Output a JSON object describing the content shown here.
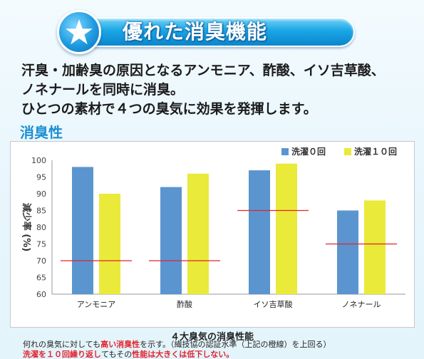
{
  "banner": {
    "title": "優れた消臭機能",
    "icon": "star-icon"
  },
  "intro": [
    "汗臭・加齢臭の原因となるアンモニア、酢酸、イソ吉草酸、",
    "ノネナールを同時に消臭。",
    "ひとつの素材で４つの臭気に効果を発揮します。"
  ],
  "section_title": "消臭性",
  "chart_data": {
    "type": "bar",
    "title": "４大臭気の消臭性能",
    "ylabel": "減少率 (%)",
    "ylim": [
      60,
      100
    ],
    "yticks": [
      60,
      65,
      70,
      75,
      80,
      85,
      90,
      95,
      100
    ],
    "categories": [
      "アンモニア",
      "酢酸",
      "イソ吉草酸",
      "ノネナール"
    ],
    "series": [
      {
        "name": "洗濯０回",
        "values": [
          98,
          92,
          97,
          85
        ],
        "color": "#5b95cf"
      },
      {
        "name": "洗濯１０回",
        "values": [
          90,
          96,
          99,
          88
        ],
        "color": "#eaea3a"
      }
    ],
    "standard": {
      "values": [
        70,
        70,
        85,
        75
      ],
      "color": "#e4232e"
    },
    "legend_position": "top-right",
    "grid": false
  },
  "notes": {
    "line1": {
      "a": "何れの臭気に対しても",
      "b": "高い消臭性",
      "c": "を示す。（繊技協の認証水準（上記の橙線）を上回る）"
    },
    "line2": {
      "a": "洗濯を１０回繰り返し",
      "b": "てもその",
      "c": "性能は大きくは低下しない。"
    }
  }
}
